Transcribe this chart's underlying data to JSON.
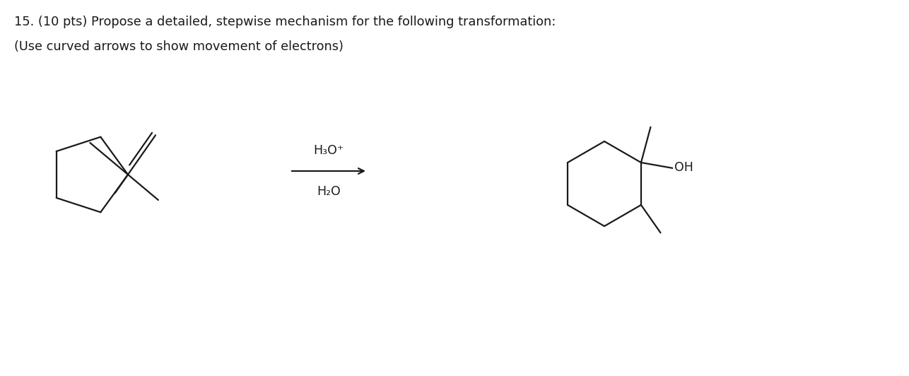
{
  "title_line1": "15. (10 pts) Propose a detailed, stepwise mechanism for the following transformation:",
  "title_line2": "(Use curved arrows to show movement of electrons)",
  "reagent_top": "H₃O⁺",
  "reagent_bottom": "H₂O",
  "background": "#ffffff",
  "text_color": "#1a1a1a",
  "title_fontsize": 12.8,
  "reagent_fontsize": 12.5,
  "lw": 1.6
}
